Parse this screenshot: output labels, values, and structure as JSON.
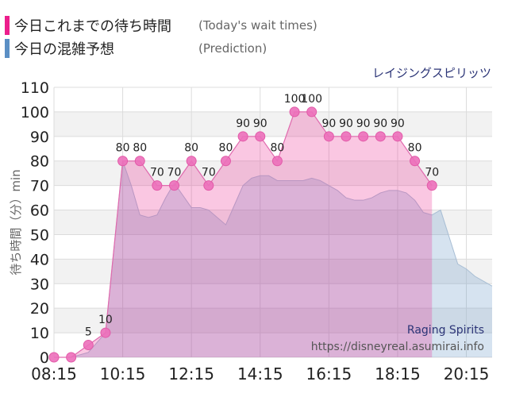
{
  "legend": {
    "today": {
      "label": "今日これまでの待ち時間",
      "note": "(Today's wait times)",
      "color": "#ec1e8c"
    },
    "prediction": {
      "label": "今日の混雑予想",
      "note": "(Prediction)",
      "color": "#5b8fc4"
    }
  },
  "attraction_name": "レイジングスピリッツ",
  "watermark": {
    "name": "Raging Spirits",
    "url": "https://disneyreal.asumirai.info"
  },
  "chart_data": {
    "type": "area",
    "ylabel": "待ち時間（分）min",
    "xlim": [
      "08:15",
      "21:00"
    ],
    "ylim": [
      0,
      110
    ],
    "ytick_step": 10,
    "grid": true,
    "y_ticks": [
      "0",
      "10",
      "20",
      "30",
      "40",
      "50",
      "60",
      "70",
      "80",
      "90",
      "100",
      "110"
    ],
    "x_ticks": [
      "08:15",
      "10:15",
      "12:15",
      "14:15",
      "16:15",
      "18:15",
      "20:15"
    ],
    "series": [
      {
        "key": "prediction",
        "color": "#5b8fc4",
        "x": [
          "08:15",
          "08:45",
          "09:15",
          "09:45",
          "10:15",
          "10:30",
          "10:45",
          "11:00",
          "11:15",
          "11:30",
          "11:45",
          "12:00",
          "12:15",
          "12:30",
          "12:45",
          "13:00",
          "13:15",
          "13:30",
          "13:45",
          "14:00",
          "14:15",
          "14:30",
          "14:45",
          "15:00",
          "15:15",
          "15:30",
          "15:45",
          "16:00",
          "16:15",
          "16:30",
          "16:45",
          "17:00",
          "17:15",
          "17:30",
          "17:45",
          "18:00",
          "18:15",
          "18:30",
          "18:45",
          "19:00",
          "19:15",
          "19:30",
          "19:45",
          "20:00",
          "20:15",
          "20:30",
          "20:45",
          "21:00"
        ],
        "values": [
          0,
          0,
          2,
          10,
          80,
          70,
          58,
          57,
          58,
          65,
          71,
          66,
          61,
          61,
          60,
          57,
          54,
          62,
          70,
          73,
          74,
          74,
          72,
          72,
          72,
          72,
          73,
          72,
          70,
          68,
          65,
          64,
          64,
          65,
          67,
          68,
          68,
          67,
          64,
          59,
          58,
          60,
          49,
          38,
          36,
          33,
          31,
          29
        ]
      },
      {
        "key": "today",
        "color": "#ec1e8c",
        "x": [
          "08:15",
          "08:45",
          "09:15",
          "09:45",
          "10:15",
          "10:45",
          "11:15",
          "11:45",
          "12:15",
          "12:45",
          "13:15",
          "13:45",
          "14:15",
          "14:45",
          "15:15",
          "15:45",
          "16:15",
          "16:45",
          "17:15",
          "17:45",
          "18:15",
          "18:45",
          "19:15"
        ],
        "values": [
          0,
          0,
          5,
          10,
          80,
          80,
          70,
          70,
          80,
          70,
          80,
          90,
          90,
          80,
          100,
          100,
          90,
          90,
          90,
          90,
          90,
          80,
          70
        ]
      }
    ],
    "data_labels": [
      "5",
      "10",
      "80",
      "80",
      "70",
      "70",
      "80",
      "70",
      "80",
      "90",
      "90",
      "80",
      "100",
      "100",
      "90",
      "90",
      "90",
      "90",
      "90",
      "80",
      "70"
    ]
  }
}
